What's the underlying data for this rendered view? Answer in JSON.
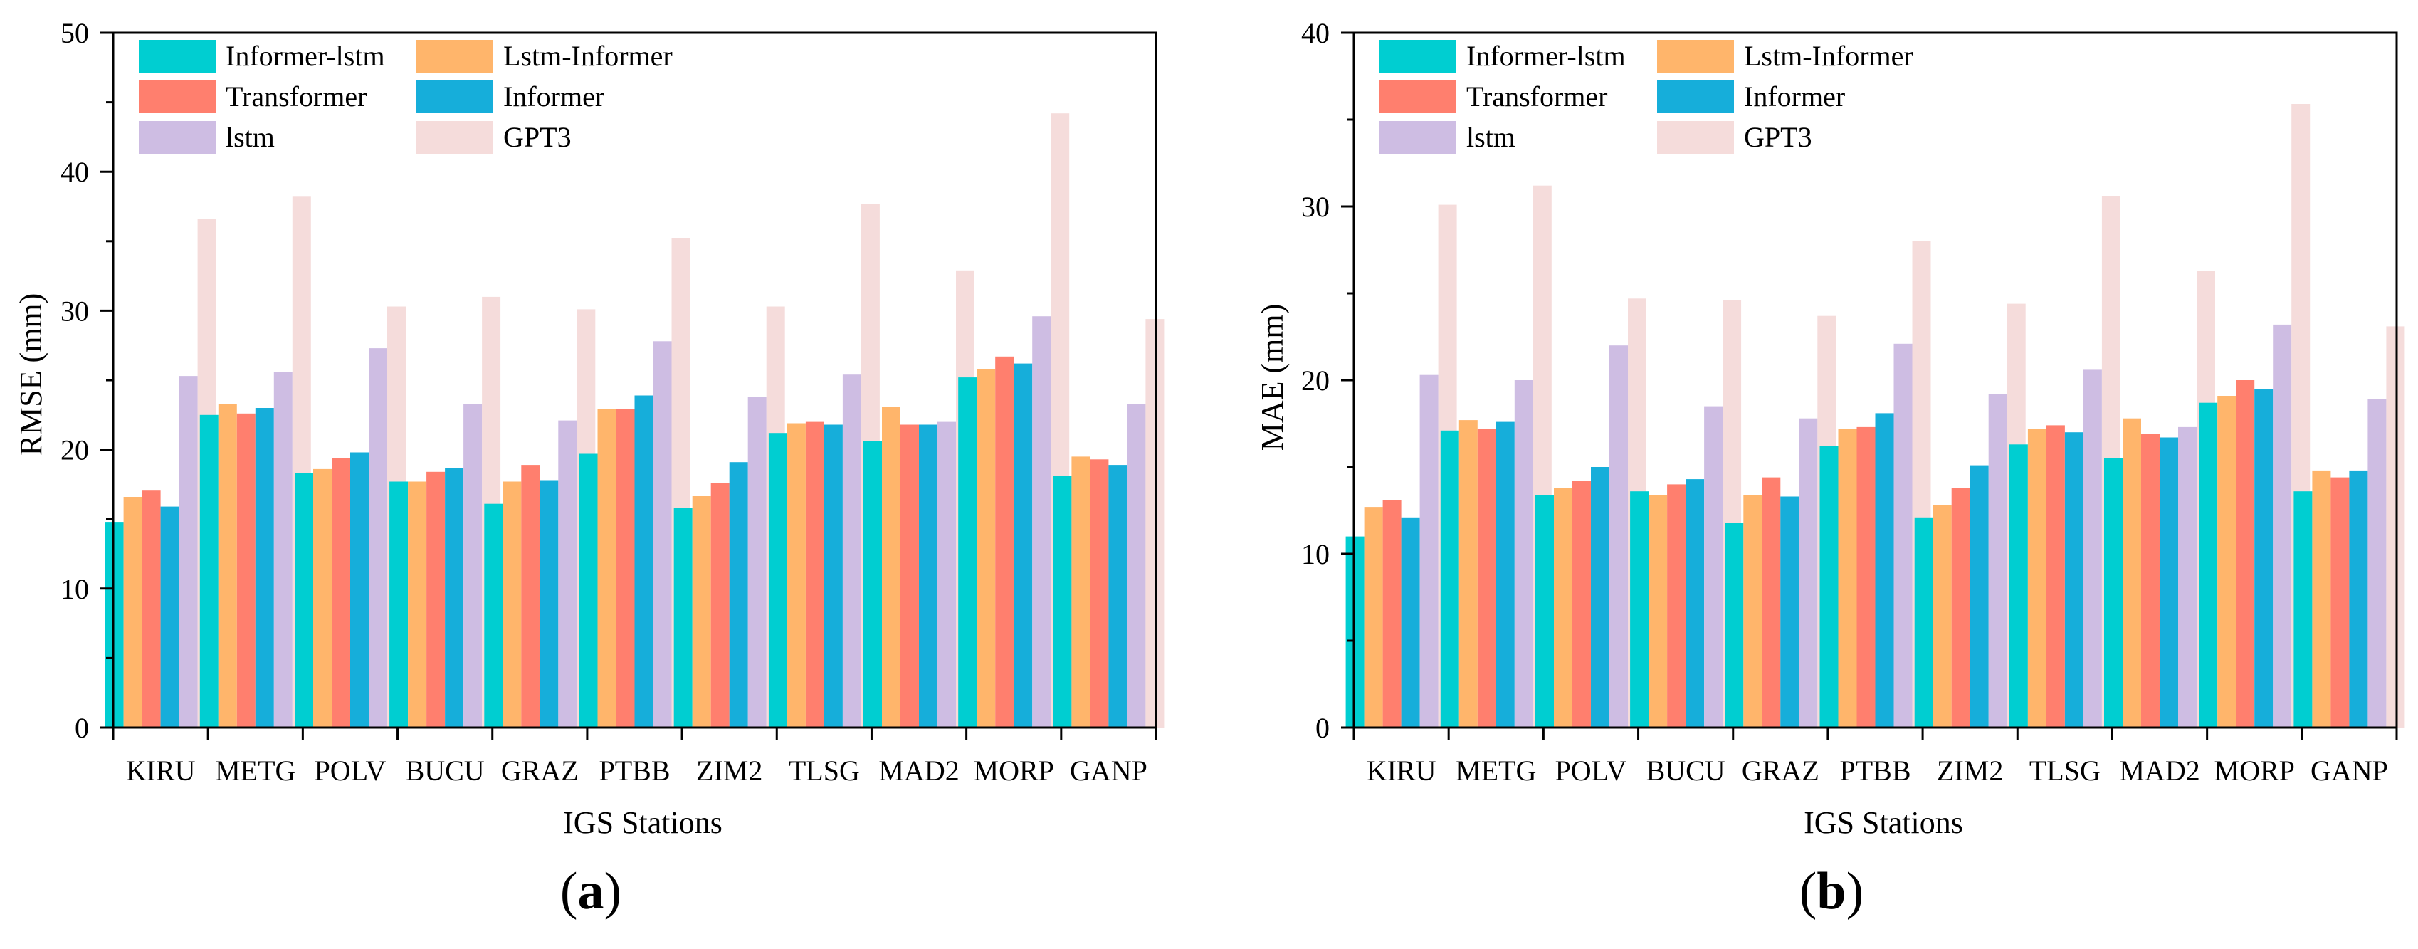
{
  "chart_data": [
    {
      "type": "bar",
      "panel_label": "(a)",
      "panel_letter": "a",
      "xlabel": "IGS Stations",
      "ylabel": "RMSE (mm)",
      "ylim": [
        0,
        50
      ],
      "yticks": [
        0,
        10,
        20,
        30,
        40,
        50
      ],
      "grid": false,
      "legend_position": "top-left",
      "categories": [
        "KIRU",
        "METG",
        "POLV",
        "BUCU",
        "GRAZ",
        "PTBB",
        "ZIM2",
        "TLSG",
        "MAD2",
        "MORP",
        "GANP"
      ],
      "series": [
        {
          "name": "Informer-lstm",
          "color": "#00CED1",
          "opacity": 1.0,
          "values": [
            14.8,
            22.5,
            18.3,
            17.7,
            16.1,
            19.7,
            15.8,
            21.2,
            20.6,
            25.2,
            18.1
          ]
        },
        {
          "name": "Lstm-Informer",
          "color": "#FFB56B",
          "opacity": 1.0,
          "values": [
            16.6,
            23.3,
            18.6,
            17.7,
            17.7,
            22.9,
            16.7,
            21.9,
            23.1,
            25.8,
            19.5
          ]
        },
        {
          "name": "Transformer",
          "color": "#FF7F6E",
          "opacity": 1.0,
          "values": [
            17.1,
            22.6,
            19.4,
            18.4,
            18.9,
            22.9,
            17.6,
            22.0,
            21.8,
            26.7,
            19.3
          ]
        },
        {
          "name": "Informer",
          "color": "#16AEDA",
          "opacity": 1.0,
          "values": [
            15.9,
            23.0,
            19.8,
            18.7,
            17.8,
            23.9,
            19.1,
            21.8,
            21.8,
            26.2,
            18.9
          ]
        },
        {
          "name": "lstm",
          "color": "#C5B1DE",
          "opacity": 0.85,
          "values": [
            25.3,
            25.6,
            27.3,
            23.3,
            22.1,
            27.8,
            23.8,
            25.4,
            22.0,
            29.6,
            23.3
          ]
        },
        {
          "name": "GPT3",
          "color": "#F2D0CF",
          "opacity": 0.75,
          "values": [
            36.6,
            38.2,
            30.3,
            31.0,
            30.1,
            35.2,
            30.3,
            37.7,
            32.9,
            44.2,
            29.4
          ]
        }
      ]
    },
    {
      "type": "bar",
      "panel_label": "(b)",
      "panel_letter": "b",
      "xlabel": "IGS Stations",
      "ylabel": "MAE (mm)",
      "ylim": [
        0,
        40
      ],
      "yticks": [
        0,
        10,
        20,
        30,
        40
      ],
      "grid": false,
      "legend_position": "top-left",
      "categories": [
        "KIRU",
        "METG",
        "POLV",
        "BUCU",
        "GRAZ",
        "PTBB",
        "ZIM2",
        "TLSG",
        "MAD2",
        "MORP",
        "GANP"
      ],
      "series": [
        {
          "name": "Informer-lstm",
          "color": "#00CED1",
          "opacity": 1.0,
          "values": [
            11.0,
            17.1,
            13.4,
            13.6,
            11.8,
            16.2,
            12.1,
            16.3,
            15.5,
            18.7,
            13.6
          ]
        },
        {
          "name": "Lstm-Informer",
          "color": "#FFB56B",
          "opacity": 1.0,
          "values": [
            12.7,
            17.7,
            13.8,
            13.4,
            13.4,
            17.2,
            12.8,
            17.2,
            17.8,
            19.1,
            14.8
          ]
        },
        {
          "name": "Transformer",
          "color": "#FF7F6E",
          "opacity": 1.0,
          "values": [
            13.1,
            17.2,
            14.2,
            14.0,
            14.4,
            17.3,
            13.8,
            17.4,
            16.9,
            20.0,
            14.4
          ]
        },
        {
          "name": "Informer",
          "color": "#16AEDA",
          "opacity": 1.0,
          "values": [
            12.1,
            17.6,
            15.0,
            14.3,
            13.3,
            18.1,
            15.1,
            17.0,
            16.7,
            19.5,
            14.8
          ]
        },
        {
          "name": "lstm",
          "color": "#C5B1DE",
          "opacity": 0.85,
          "values": [
            20.3,
            20.0,
            22.0,
            18.5,
            17.8,
            22.1,
            19.2,
            20.6,
            17.3,
            23.2,
            18.9
          ]
        },
        {
          "name": "GPT3",
          "color": "#F2D0CF",
          "opacity": 0.75,
          "values": [
            30.1,
            31.2,
            24.7,
            24.6,
            23.7,
            28.0,
            24.4,
            30.6,
            26.3,
            35.9,
            23.1
          ]
        }
      ]
    }
  ]
}
